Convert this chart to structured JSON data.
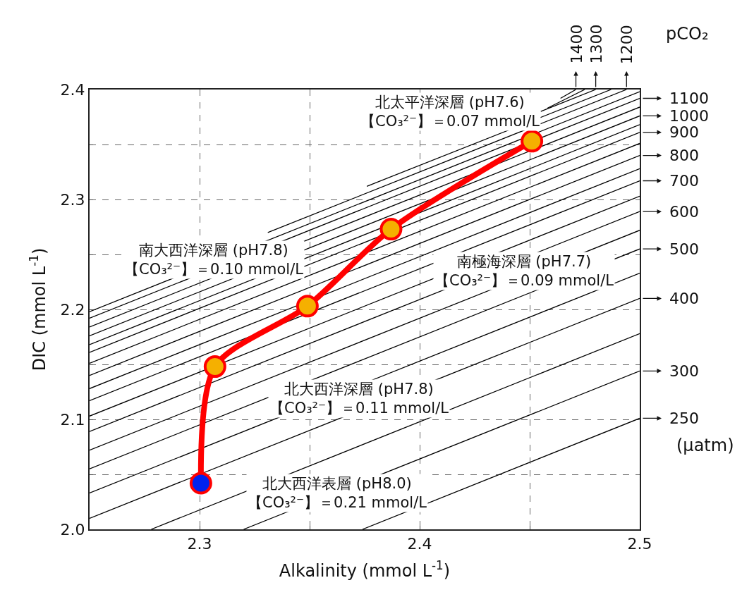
{
  "chart_data": {
    "type": "line",
    "xlabel": "Alkalinity (mmol L$^{-1}$)",
    "ylabel": "DIC (mmol L$^{-1}$)",
    "xlim": [
      2.25,
      2.5
    ],
    "ylim": [
      2.0,
      2.4
    ],
    "xticks": [
      {
        "value": 2.25,
        "label": null
      },
      2.3,
      {
        "value": 2.35,
        "label": null
      },
      2.4,
      {
        "value": 2.45,
        "label": null
      },
      2.5
    ],
    "yticks": [
      {
        "value": 2.0,
        "label": "2.0"
      },
      {
        "value": 2.05,
        "label": null
      },
      2.1,
      {
        "value": 2.15,
        "label": null
      },
      2.2,
      {
        "value": 2.25,
        "label": null
      },
      2.3,
      {
        "value": 2.35,
        "label": null
      },
      2.4
    ],
    "grid": true,
    "marker": "circle",
    "line_style": "solid",
    "series": [
      {
        "color": "#ff0000",
        "x": [
          2.3006,
          2.307,
          2.349,
          2.387,
          2.451
        ],
        "values": [
          2.042,
          2.148,
          2.203,
          2.273,
          2.353
        ],
        "colors": [
          "#0022ee",
          "#f5b000",
          "#f5b000",
          "#f5b000",
          "#f5b000"
        ]
      },
      {
        "color": "#000000",
        "marker": "none",
        "x": [
          2.374,
          2.5
        ],
        "values": [
          2.0,
          2.101
        ]
      },
      {
        "color": "#000000",
        "marker": "none",
        "x": [
          2.32,
          2.5
        ],
        "values": [
          2.0,
          2.144
        ]
      },
      {
        "color": "#000000",
        "marker": "none",
        "x": [
          2.278,
          2.5
        ],
        "values": [
          2.0,
          2.178
        ]
      },
      {
        "color": "#000000",
        "marker": "none",
        "x": [
          2.25,
          2.5
        ],
        "values": [
          2.01,
          2.21
        ]
      },
      {
        "color": "#000000",
        "marker": "none",
        "x": [
          2.25,
          2.5
        ],
        "values": [
          2.033,
          2.233
        ]
      },
      {
        "color": "#000000",
        "marker": "none",
        "x": [
          2.25,
          2.5
        ],
        "values": [
          2.055,
          2.255
        ]
      },
      {
        "color": "#000000",
        "marker": "none",
        "x": [
          2.25,
          2.5
        ],
        "values": [
          2.072,
          2.272
        ]
      },
      {
        "color": "#000000",
        "marker": "none",
        "x": [
          2.25,
          2.5
        ],
        "values": [
          2.089,
          2.289
        ]
      },
      {
        "color": "#000000",
        "marker": "none",
        "x": [
          2.25,
          2.5
        ],
        "values": [
          2.103,
          2.303
        ]
      },
      {
        "color": "#000000",
        "marker": "none",
        "x": [
          2.25,
          2.5
        ],
        "values": [
          2.117,
          2.317
        ]
      },
      {
        "color": "#000000",
        "marker": "none",
        "x": [
          2.25,
          2.5
        ],
        "values": [
          2.128,
          2.328
        ]
      },
      {
        "color": "#000000",
        "marker": "none",
        "x": [
          2.25,
          2.5
        ],
        "values": [
          2.14,
          2.34
        ]
      },
      {
        "color": "#000000",
        "marker": "none",
        "x": [
          2.25,
          2.5
        ],
        "values": [
          2.151,
          2.351
        ]
      },
      {
        "color": "#000000",
        "marker": "none",
        "x": [
          2.25,
          2.5
        ],
        "values": [
          2.161,
          2.361
        ]
      },
      {
        "color": "#000000",
        "marker": "none",
        "x": [
          2.25,
          2.5
        ],
        "values": [
          2.168,
          2.368
        ]
      },
      {
        "color": "#000000",
        "marker": "none",
        "x": [
          2.25,
          2.5
        ],
        "values": [
          2.176,
          2.376
        ]
      },
      {
        "color": "#000000",
        "marker": "none",
        "x": [
          2.25,
          2.5
        ],
        "values": [
          2.184,
          2.384
        ]
      },
      {
        "color": "#000000",
        "marker": "none",
        "x": [
          2.25,
          2.5
        ],
        "values": [
          2.192,
          2.392
        ]
      },
      {
        "color": "#000000",
        "marker": "none",
        "x": [
          2.25,
          2.5
        ],
        "values": [
          2.198,
          2.398
        ]
      },
      {
        "color": "#000000",
        "marker": "none",
        "x": [
          2.331,
          2.494
        ],
        "values": [
          2.27,
          2.4
        ]
      },
      {
        "color": "#000000",
        "marker": "none",
        "x": [
          2.376,
          2.487
        ],
        "values": [
          2.312,
          2.4
        ]
      },
      {
        "color": "#000000",
        "marker": "none",
        "x": [
          2.455,
          2.48
        ],
        "values": [
          2.38,
          2.4
        ]
      },
      {
        "color": "#000000",
        "marker": "none",
        "x": [
          2.458,
          2.475
        ],
        "values": [
          2.383,
          2.4
        ]
      },
      {
        "color": "#000000",
        "marker": "none",
        "x": [
          2.464,
          2.471
        ],
        "values": [
          2.392,
          2.4
        ]
      }
    ],
    "annotations": [
      "北太平洋深層 (pH7.6)\n【CO₃²⁻】＝0.07 mmol/L",
      "南大西洋深層 (pH7.8)\n【CO₃²⁻】＝0.10 mmol/L",
      "南極海深層 (pH7.7)\n【CO₃²⁻】＝0.09 mmol/L",
      "北大西洋深層 (pH7.8)\n【CO₃²⁻】＝0.11 mmol/L",
      "北大西洋表層 (pH8.0)\n【CO₃²⁻】＝0.21 mmol/L",
      {
        "text": "250",
        "x": 2.5,
        "y": 2.101
      },
      {
        "text": "300",
        "x": 2.5,
        "y": 2.144
      },
      {
        "text": "400",
        "x": 2.5,
        "y": 2.21
      },
      {
        "text": "500",
        "x": 2.5,
        "y": 2.255
      },
      {
        "text": "600",
        "x": 2.5,
        "y": 2.289
      },
      {
        "text": "700",
        "x": 2.5,
        "y": 2.317
      },
      {
        "text": "800",
        "x": 2.5,
        "y": 2.34
      },
      {
        "text": "900",
        "x": 2.5,
        "y": 2.361
      },
      {
        "text": "1000",
        "x": 2.5,
        "y": 2.376
      },
      {
        "text": "1100",
        "x": 2.5,
        "y": 2.392
      },
      {
        "text": "1200",
        "x": 2.494,
        "y": 2.4
      },
      {
        "text": "1300",
        "x": 2.48,
        "y": 2.4
      },
      {
        "text": "1400",
        "x": 2.471,
        "y": 2.4
      },
      "pCO₂",
      "(μatm)"
    ]
  }
}
